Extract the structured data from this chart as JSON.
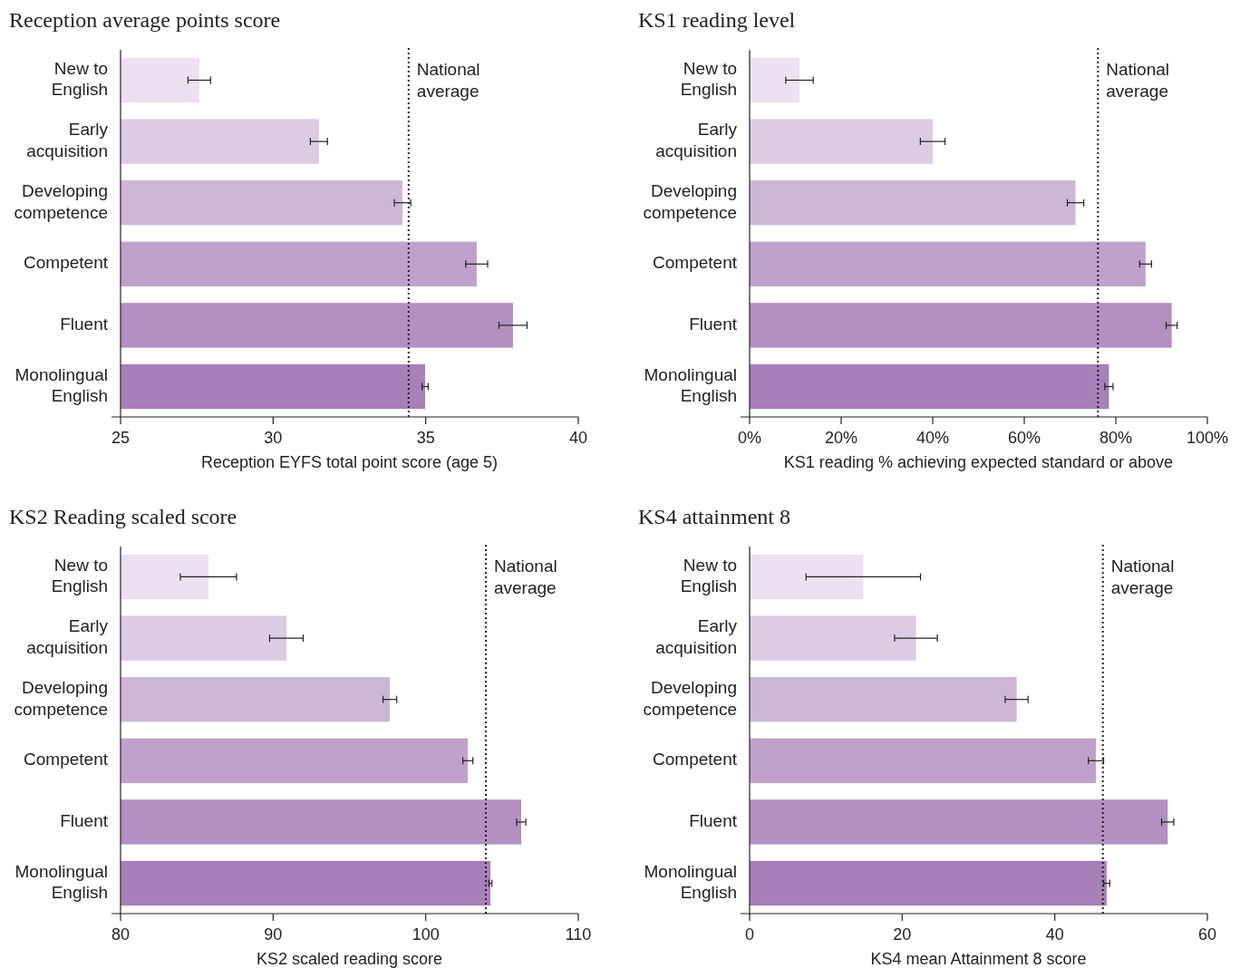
{
  "chart_data": [
    {
      "type": "bar",
      "orientation": "horizontal",
      "title": "Reception average points score",
      "xlabel": "Reception EYFS total point score (age 5)",
      "categories": [
        "New to English",
        "Early acquisition",
        "Developing competence",
        "Competent",
        "Fluent",
        "Monolingual English"
      ],
      "values": [
        27.58,
        31.5,
        34.24,
        36.67,
        37.86,
        34.98
      ],
      "errors": [
        0.37,
        0.28,
        0.27,
        0.36,
        0.46,
        0.1
      ],
      "colors": [
        "#ebe1f0",
        "#dccbe4",
        "#cdb7d7",
        "#c0a1cb",
        "#b38fc2",
        "#a77fb9"
      ],
      "xlim": [
        25,
        40
      ],
      "xticks": [
        25,
        30,
        35,
        40
      ],
      "grid": false,
      "ref_lines": [
        {
          "axis": "x",
          "value": 34.44,
          "label": "National average",
          "line_style": "dotted",
          "color": "#222222"
        }
      ]
    },
    {
      "type": "bar",
      "orientation": "horizontal",
      "title": "KS1 reading level",
      "xlabel": "KS1 reading % achieving expected standard or above",
      "categories": [
        "New to English",
        "Early acquisition",
        "Developing competence",
        "Competent",
        "Fluent",
        "Monolingual English"
      ],
      "values": [
        10.9,
        40,
        71.2,
        86.5,
        92.2,
        78.5
      ],
      "errors": [
        3,
        2.7,
        1.8,
        1.3,
        1.2,
        0.9
      ],
      "colors": [
        "#ebe1f0",
        "#dccbe4",
        "#cdb7d7",
        "#c0a1cb",
        "#b38fc2",
        "#a77fb9"
      ],
      "xlim": [
        0,
        100
      ],
      "xticks": [
        {
          "value": 0,
          "label": "0%"
        },
        {
          "value": 20,
          "label": "20%"
        },
        {
          "value": 40,
          "label": "40%"
        },
        {
          "value": 60,
          "label": "60%"
        },
        {
          "value": 80,
          "label": "80%"
        },
        {
          "value": 100,
          "label": "100%"
        }
      ],
      "grid": false,
      "ref_lines": [
        {
          "axis": "x",
          "value": 76.1,
          "label": "National average",
          "line_style": "dotted",
          "color": "#222222"
        }
      ]
    },
    {
      "type": "bar",
      "orientation": "horizontal",
      "title": "KS2 Reading scaled score",
      "xlabel": "KS2 scaled reading score",
      "categories": [
        "New to English",
        "Early acquisition",
        "Developing competence",
        "Competent",
        "Fluent",
        "Monolingual English"
      ],
      "values": [
        85.76,
        90.87,
        97.65,
        102.76,
        106.26,
        104.24
      ],
      "errors": [
        1.84,
        1.1,
        0.45,
        0.33,
        0.3,
        0.1
      ],
      "colors": [
        "#ebe1f0",
        "#dccbe4",
        "#cdb7d7",
        "#c0a1cb",
        "#b38fc2",
        "#a77fb9"
      ],
      "xlim": [
        80,
        110
      ],
      "xticks": [
        80,
        90,
        100,
        110
      ],
      "grid": false,
      "ref_lines": [
        {
          "axis": "x",
          "value": 103.94,
          "label": "National average",
          "line_style": "dotted",
          "color": "#222222"
        }
      ]
    },
    {
      "type": "bar",
      "orientation": "horizontal",
      "title": "KS4 attainment 8",
      "xlabel": "KS4 mean Attainment 8 score",
      "categories": [
        "New to English",
        "Early acquisition",
        "Developing competence",
        "Competent",
        "Fluent",
        "Monolingual English"
      ],
      "values": [
        14.9,
        21.8,
        35.0,
        45.4,
        54.8,
        46.8
      ],
      "errors": [
        7.5,
        2.8,
        1.5,
        1.0,
        0.8,
        0.4
      ],
      "colors": [
        "#ebe1f0",
        "#dccbe4",
        "#cdb7d7",
        "#c0a1cb",
        "#b38fc2",
        "#a77fb9"
      ],
      "xlim": [
        0,
        60
      ],
      "xticks": [
        0,
        20,
        40,
        60
      ],
      "grid": false,
      "ref_lines": [
        {
          "axis": "x",
          "value": 46.3,
          "label": "National average",
          "line_style": "dotted",
          "color": "#222222"
        }
      ]
    }
  ]
}
